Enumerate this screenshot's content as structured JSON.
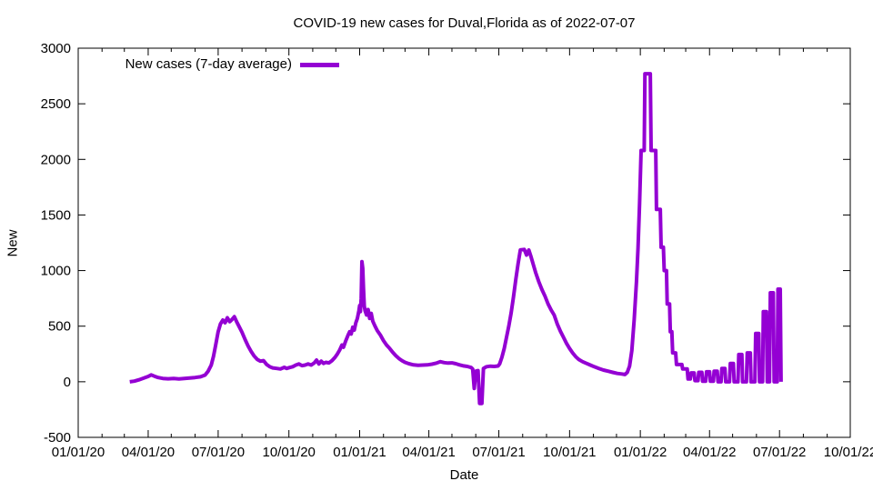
{
  "chart_data": {
    "type": "line",
    "title": "COVID-19 new cases for Duval,Florida as of 2022-07-07",
    "xlabel": "Date",
    "ylabel": "New",
    "grid": false,
    "legend_position": "top-left-inside",
    "x_range": [
      "2020-01-01",
      "2022-10-01"
    ],
    "y_range": [
      -500,
      3000
    ],
    "y_ticks": [
      -500,
      0,
      500,
      1000,
      1500,
      2000,
      2500,
      3000
    ],
    "x_ticks": [
      {
        "label": "01/01/20",
        "date": "2020-01-01"
      },
      {
        "label": "04/01/20",
        "date": "2020-04-01"
      },
      {
        "label": "07/01/20",
        "date": "2020-07-01"
      },
      {
        "label": "10/01/20",
        "date": "2020-10-01"
      },
      {
        "label": "01/01/21",
        "date": "2021-01-01"
      },
      {
        "label": "04/01/21",
        "date": "2021-04-01"
      },
      {
        "label": "07/01/21",
        "date": "2021-07-01"
      },
      {
        "label": "10/01/21",
        "date": "2021-10-01"
      },
      {
        "label": "01/01/22",
        "date": "2022-01-01"
      },
      {
        "label": "04/01/22",
        "date": "2022-04-01"
      },
      {
        "label": "07/01/22",
        "date": "2022-07-01"
      },
      {
        "label": "10/01/22",
        "date": "2022-10-01"
      }
    ],
    "series": [
      {
        "name": "New cases (7-day average)",
        "color": "#9400D3",
        "line_width": 4,
        "points": [
          [
            "2020-03-08",
            0
          ],
          [
            "2020-03-14",
            5
          ],
          [
            "2020-03-20",
            18
          ],
          [
            "2020-03-26",
            32
          ],
          [
            "2020-04-01",
            48
          ],
          [
            "2020-04-05",
            62
          ],
          [
            "2020-04-09",
            50
          ],
          [
            "2020-04-14",
            38
          ],
          [
            "2020-04-20",
            30
          ],
          [
            "2020-04-27",
            27
          ],
          [
            "2020-05-04",
            30
          ],
          [
            "2020-05-11",
            26
          ],
          [
            "2020-05-18",
            30
          ],
          [
            "2020-05-25",
            34
          ],
          [
            "2020-06-01",
            38
          ],
          [
            "2020-06-08",
            45
          ],
          [
            "2020-06-14",
            60
          ],
          [
            "2020-06-18",
            95
          ],
          [
            "2020-06-22",
            150
          ],
          [
            "2020-06-25",
            230
          ],
          [
            "2020-06-28",
            340
          ],
          [
            "2020-07-01",
            450
          ],
          [
            "2020-07-04",
            520
          ],
          [
            "2020-07-07",
            555
          ],
          [
            "2020-07-10",
            530
          ],
          [
            "2020-07-13",
            575
          ],
          [
            "2020-07-16",
            540
          ],
          [
            "2020-07-19",
            560
          ],
          [
            "2020-07-22",
            585
          ],
          [
            "2020-07-25",
            540
          ],
          [
            "2020-07-28",
            500
          ],
          [
            "2020-08-01",
            445
          ],
          [
            "2020-08-05",
            380
          ],
          [
            "2020-08-09",
            320
          ],
          [
            "2020-08-13",
            270
          ],
          [
            "2020-08-17",
            230
          ],
          [
            "2020-08-21",
            200
          ],
          [
            "2020-08-25",
            185
          ],
          [
            "2020-08-29",
            190
          ],
          [
            "2020-09-02",
            155
          ],
          [
            "2020-09-06",
            135
          ],
          [
            "2020-09-10",
            125
          ],
          [
            "2020-09-15",
            120
          ],
          [
            "2020-09-20",
            115
          ],
          [
            "2020-09-25",
            130
          ],
          [
            "2020-09-28",
            120
          ],
          [
            "2020-10-02",
            128
          ],
          [
            "2020-10-06",
            135
          ],
          [
            "2020-10-10",
            150
          ],
          [
            "2020-10-14",
            160
          ],
          [
            "2020-10-18",
            145
          ],
          [
            "2020-10-22",
            150
          ],
          [
            "2020-10-26",
            160
          ],
          [
            "2020-10-30",
            150
          ],
          [
            "2020-11-03",
            170
          ],
          [
            "2020-11-06",
            195
          ],
          [
            "2020-11-09",
            160
          ],
          [
            "2020-11-12",
            185
          ],
          [
            "2020-11-15",
            165
          ],
          [
            "2020-11-18",
            175
          ],
          [
            "2020-11-22",
            170
          ],
          [
            "2020-11-26",
            190
          ],
          [
            "2020-11-30",
            220
          ],
          [
            "2020-12-03",
            250
          ],
          [
            "2020-12-06",
            285
          ],
          [
            "2020-12-09",
            330
          ],
          [
            "2020-12-11",
            310
          ],
          [
            "2020-12-14",
            370
          ],
          [
            "2020-12-17",
            420
          ],
          [
            "2020-12-19",
            450
          ],
          [
            "2020-12-21",
            430
          ],
          [
            "2020-12-23",
            490
          ],
          [
            "2020-12-25",
            465
          ],
          [
            "2020-12-27",
            530
          ],
          [
            "2020-12-29",
            570
          ],
          [
            "2020-12-31",
            640
          ],
          [
            "2021-01-01",
            685
          ],
          [
            "2021-01-02",
            630
          ],
          [
            "2021-01-03",
            750
          ],
          [
            "2021-01-04",
            1080
          ],
          [
            "2021-01-05",
            1020
          ],
          [
            "2021-01-06",
            840
          ],
          [
            "2021-01-07",
            680
          ],
          [
            "2021-01-08",
            640
          ],
          [
            "2021-01-10",
            600
          ],
          [
            "2021-01-12",
            650
          ],
          [
            "2021-01-14",
            570
          ],
          [
            "2021-01-16",
            615
          ],
          [
            "2021-01-18",
            545
          ],
          [
            "2021-01-21",
            500
          ],
          [
            "2021-01-24",
            460
          ],
          [
            "2021-01-28",
            420
          ],
          [
            "2021-02-01",
            370
          ],
          [
            "2021-02-05",
            330
          ],
          [
            "2021-02-09",
            300
          ],
          [
            "2021-02-13",
            265
          ],
          [
            "2021-02-17",
            235
          ],
          [
            "2021-02-21",
            210
          ],
          [
            "2021-02-25",
            190
          ],
          [
            "2021-03-01",
            175
          ],
          [
            "2021-03-06",
            162
          ],
          [
            "2021-03-12",
            152
          ],
          [
            "2021-03-18",
            148
          ],
          [
            "2021-03-24",
            150
          ],
          [
            "2021-03-30",
            152
          ],
          [
            "2021-04-05",
            158
          ],
          [
            "2021-04-11",
            168
          ],
          [
            "2021-04-16",
            180
          ],
          [
            "2021-04-21",
            172
          ],
          [
            "2021-04-26",
            168
          ],
          [
            "2021-05-01",
            170
          ],
          [
            "2021-05-06",
            162
          ],
          [
            "2021-05-11",
            152
          ],
          [
            "2021-05-16",
            143
          ],
          [
            "2021-05-21",
            138
          ],
          [
            "2021-05-26",
            128
          ],
          [
            "2021-05-28",
            115
          ],
          [
            "2021-05-30",
            -60
          ],
          [
            "2021-06-01",
            95
          ],
          [
            "2021-06-04",
            100
          ],
          [
            "2021-06-06",
            -195
          ],
          [
            "2021-06-09",
            -195
          ],
          [
            "2021-06-11",
            120
          ],
          [
            "2021-06-15",
            135
          ],
          [
            "2021-06-20",
            140
          ],
          [
            "2021-06-25",
            138
          ],
          [
            "2021-06-30",
            142
          ],
          [
            "2021-07-02",
            160
          ],
          [
            "2021-07-05",
            220
          ],
          [
            "2021-07-08",
            300
          ],
          [
            "2021-07-11",
            400
          ],
          [
            "2021-07-14",
            500
          ],
          [
            "2021-07-17",
            620
          ],
          [
            "2021-07-20",
            760
          ],
          [
            "2021-07-23",
            920
          ],
          [
            "2021-07-26",
            1060
          ],
          [
            "2021-07-29",
            1185
          ],
          [
            "2021-08-03",
            1190
          ],
          [
            "2021-08-06",
            1140
          ],
          [
            "2021-08-09",
            1185
          ],
          [
            "2021-08-12",
            1120
          ],
          [
            "2021-08-15",
            1050
          ],
          [
            "2021-08-18",
            980
          ],
          [
            "2021-08-22",
            900
          ],
          [
            "2021-08-26",
            830
          ],
          [
            "2021-08-30",
            770
          ],
          [
            "2021-09-03",
            700
          ],
          [
            "2021-09-07",
            645
          ],
          [
            "2021-09-11",
            600
          ],
          [
            "2021-09-15",
            520
          ],
          [
            "2021-09-19",
            455
          ],
          [
            "2021-09-23",
            400
          ],
          [
            "2021-09-27",
            345
          ],
          [
            "2021-10-01",
            300
          ],
          [
            "2021-10-05",
            260
          ],
          [
            "2021-10-09",
            225
          ],
          [
            "2021-10-13",
            200
          ],
          [
            "2021-10-18",
            180
          ],
          [
            "2021-10-23",
            165
          ],
          [
            "2021-10-28",
            150
          ],
          [
            "2021-11-02",
            135
          ],
          [
            "2021-11-08",
            120
          ],
          [
            "2021-11-14",
            105
          ],
          [
            "2021-11-20",
            95
          ],
          [
            "2021-11-26",
            85
          ],
          [
            "2021-12-02",
            75
          ],
          [
            "2021-12-08",
            70
          ],
          [
            "2021-12-12",
            65
          ],
          [
            "2021-12-15",
            85
          ],
          [
            "2021-12-18",
            140
          ],
          [
            "2021-12-21",
            280
          ],
          [
            "2021-12-24",
            560
          ],
          [
            "2021-12-27",
            900
          ],
          [
            "2021-12-29",
            1200
          ],
          [
            "2021-12-31",
            1600
          ],
          [
            "2022-01-02",
            2080
          ],
          [
            "2022-01-06",
            2080
          ],
          [
            "2022-01-07",
            2770
          ],
          [
            "2022-01-14",
            2770
          ],
          [
            "2022-01-15",
            2080
          ],
          [
            "2022-01-21",
            2080
          ],
          [
            "2022-01-22",
            1550
          ],
          [
            "2022-01-27",
            1550
          ],
          [
            "2022-01-28",
            1210
          ],
          [
            "2022-01-31",
            1210
          ],
          [
            "2022-02-01",
            1000
          ],
          [
            "2022-02-04",
            1000
          ],
          [
            "2022-02-05",
            700
          ],
          [
            "2022-02-08",
            700
          ],
          [
            "2022-02-09",
            450
          ],
          [
            "2022-02-11",
            450
          ],
          [
            "2022-02-12",
            260
          ],
          [
            "2022-02-16",
            260
          ],
          [
            "2022-02-17",
            155
          ],
          [
            "2022-02-24",
            155
          ],
          [
            "2022-02-25",
            115
          ],
          [
            "2022-03-03",
            115
          ],
          [
            "2022-03-04",
            25
          ],
          [
            "2022-03-07",
            25
          ],
          [
            "2022-03-08",
            80
          ],
          [
            "2022-03-12",
            80
          ],
          [
            "2022-03-13",
            10
          ],
          [
            "2022-03-17",
            10
          ],
          [
            "2022-03-18",
            85
          ],
          [
            "2022-03-22",
            85
          ],
          [
            "2022-03-23",
            5
          ],
          [
            "2022-03-27",
            5
          ],
          [
            "2022-03-28",
            90
          ],
          [
            "2022-04-01",
            90
          ],
          [
            "2022-04-02",
            5
          ],
          [
            "2022-04-06",
            5
          ],
          [
            "2022-04-07",
            95
          ],
          [
            "2022-04-11",
            95
          ],
          [
            "2022-04-12",
            0
          ],
          [
            "2022-04-16",
            0
          ],
          [
            "2022-04-17",
            120
          ],
          [
            "2022-04-21",
            120
          ],
          [
            "2022-04-22",
            0
          ],
          [
            "2022-04-27",
            0
          ],
          [
            "2022-04-28",
            165
          ],
          [
            "2022-05-02",
            165
          ],
          [
            "2022-05-03",
            0
          ],
          [
            "2022-05-08",
            0
          ],
          [
            "2022-05-09",
            245
          ],
          [
            "2022-05-13",
            245
          ],
          [
            "2022-05-14",
            0
          ],
          [
            "2022-05-19",
            0
          ],
          [
            "2022-05-20",
            260
          ],
          [
            "2022-05-24",
            260
          ],
          [
            "2022-05-25",
            0
          ],
          [
            "2022-05-30",
            0
          ],
          [
            "2022-05-31",
            435
          ],
          [
            "2022-06-04",
            435
          ],
          [
            "2022-06-05",
            0
          ],
          [
            "2022-06-09",
            0
          ],
          [
            "2022-06-10",
            630
          ],
          [
            "2022-06-14",
            630
          ],
          [
            "2022-06-15",
            0
          ],
          [
            "2022-06-18",
            0
          ],
          [
            "2022-06-19",
            800
          ],
          [
            "2022-06-23",
            800
          ],
          [
            "2022-06-24",
            0
          ],
          [
            "2022-06-28",
            0
          ],
          [
            "2022-06-29",
            833
          ],
          [
            "2022-07-02",
            833
          ],
          [
            "2022-07-03",
            0
          ]
        ]
      }
    ]
  }
}
